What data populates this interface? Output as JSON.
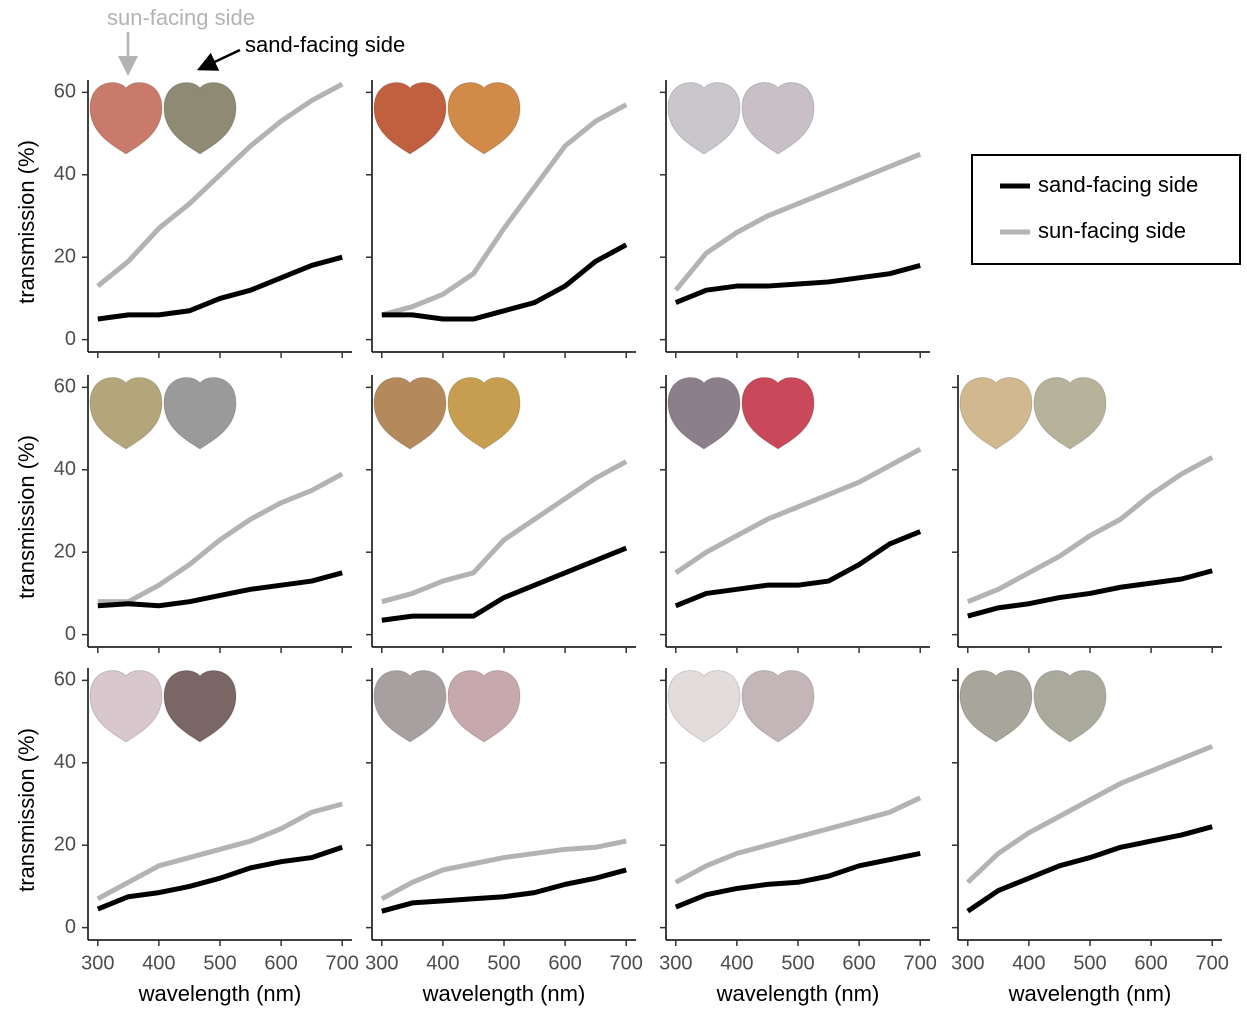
{
  "chart_data": [
    {
      "type": "line",
      "ylabel": "transmission (%)",
      "annotations": [
        "sun-facing side",
        "sand-facing side"
      ],
      "x": [
        300,
        350,
        400,
        450,
        500,
        550,
        600,
        650,
        700
      ],
      "xlim": [
        284,
        716
      ],
      "ylim": [
        -3,
        63
      ],
      "xticks": [
        300,
        400,
        500,
        600,
        700
      ],
      "yticks": [
        0,
        20,
        40,
        60
      ],
      "series": [
        {
          "name": "sand-facing side",
          "color": "#000000",
          "values": [
            5,
            6,
            6,
            7,
            10,
            12,
            15,
            18,
            20
          ]
        },
        {
          "name": "sun-facing side",
          "color": "#b3b3b3",
          "values": [
            13,
            19,
            27,
            33,
            40,
            47,
            53,
            58,
            62
          ]
        }
      ]
    },
    {
      "type": "line",
      "x": [
        300,
        350,
        400,
        450,
        500,
        550,
        600,
        650,
        700
      ],
      "xlim": [
        284,
        716
      ],
      "ylim": [
        -3,
        63
      ],
      "xticks": [
        300,
        400,
        500,
        600,
        700
      ],
      "yticks": [
        0,
        20,
        40,
        60
      ],
      "series": [
        {
          "name": "sand-facing side",
          "color": "#000000",
          "values": [
            6,
            6,
            5,
            5,
            7,
            9,
            13,
            19,
            23
          ]
        },
        {
          "name": "sun-facing side",
          "color": "#b3b3b3",
          "values": [
            6,
            8,
            11,
            16,
            27,
            37,
            47,
            53,
            57
          ]
        }
      ]
    },
    {
      "type": "line",
      "x": [
        300,
        350,
        400,
        450,
        500,
        550,
        600,
        650,
        700
      ],
      "xlim": [
        284,
        716
      ],
      "ylim": [
        -3,
        63
      ],
      "xticks": [
        300,
        400,
        500,
        600,
        700
      ],
      "yticks": [
        0,
        20,
        40,
        60
      ],
      "series": [
        {
          "name": "sand-facing side",
          "color": "#000000",
          "values": [
            9,
            12,
            13,
            13,
            13.5,
            14,
            15,
            16,
            18
          ]
        },
        {
          "name": "sun-facing side",
          "color": "#b3b3b3",
          "values": [
            12,
            21,
            26,
            30,
            33,
            36,
            39,
            42,
            45
          ]
        }
      ]
    },
    {
      "type": "line",
      "ylabel": "transmission (%)",
      "x": [
        300,
        350,
        400,
        450,
        500,
        550,
        600,
        650,
        700
      ],
      "xlim": [
        284,
        716
      ],
      "ylim": [
        -3,
        63
      ],
      "xticks": [
        300,
        400,
        500,
        600,
        700
      ],
      "yticks": [
        0,
        20,
        40,
        60
      ],
      "series": [
        {
          "name": "sand-facing side",
          "color": "#000000",
          "values": [
            7,
            7.5,
            7,
            8,
            9.5,
            11,
            12,
            13,
            15
          ]
        },
        {
          "name": "sun-facing side",
          "color": "#b3b3b3",
          "values": [
            8,
            8,
            12,
            17,
            23,
            28,
            32,
            35,
            39
          ]
        }
      ]
    },
    {
      "type": "line",
      "x": [
        300,
        350,
        400,
        450,
        500,
        550,
        600,
        650,
        700
      ],
      "xlim": [
        284,
        716
      ],
      "ylim": [
        -3,
        63
      ],
      "xticks": [
        300,
        400,
        500,
        600,
        700
      ],
      "yticks": [
        0,
        20,
        40,
        60
      ],
      "series": [
        {
          "name": "sand-facing side",
          "color": "#000000",
          "values": [
            3.5,
            4.5,
            4.5,
            4.5,
            9,
            12,
            15,
            18,
            21
          ]
        },
        {
          "name": "sun-facing side",
          "color": "#b3b3b3",
          "values": [
            8,
            10,
            13,
            15,
            23,
            28,
            33,
            38,
            42
          ]
        }
      ]
    },
    {
      "type": "line",
      "x": [
        300,
        350,
        400,
        450,
        500,
        550,
        600,
        650,
        700
      ],
      "xlim": [
        284,
        716
      ],
      "ylim": [
        -3,
        63
      ],
      "xticks": [
        300,
        400,
        500,
        600,
        700
      ],
      "yticks": [
        0,
        20,
        40,
        60
      ],
      "series": [
        {
          "name": "sand-facing side",
          "color": "#000000",
          "values": [
            7,
            10,
            11,
            12,
            12,
            13,
            17,
            22,
            25
          ]
        },
        {
          "name": "sun-facing side",
          "color": "#b3b3b3",
          "values": [
            15,
            20,
            24,
            28,
            31,
            34,
            37,
            41,
            45
          ]
        }
      ]
    },
    {
      "type": "line",
      "x": [
        300,
        350,
        400,
        450,
        500,
        550,
        600,
        650,
        700
      ],
      "xlim": [
        284,
        716
      ],
      "ylim": [
        -3,
        63
      ],
      "xticks": [
        300,
        400,
        500,
        600,
        700
      ],
      "yticks": [
        0,
        20,
        40,
        60
      ],
      "series": [
        {
          "name": "sand-facing side",
          "color": "#000000",
          "values": [
            4.5,
            6.5,
            7.5,
            9,
            10,
            11.5,
            12.5,
            13.5,
            15.5
          ]
        },
        {
          "name": "sun-facing side",
          "color": "#b3b3b3",
          "values": [
            8,
            11,
            15,
            19,
            24,
            28,
            34,
            39,
            43
          ]
        }
      ]
    },
    {
      "type": "line",
      "ylabel": "transmission (%)",
      "xlabel": "wavelength (nm)",
      "x": [
        300,
        350,
        400,
        450,
        500,
        550,
        600,
        650,
        700
      ],
      "xlim": [
        284,
        716
      ],
      "ylim": [
        -3,
        63
      ],
      "xticks": [
        300,
        400,
        500,
        600,
        700
      ],
      "yticks": [
        0,
        20,
        40,
        60
      ],
      "series": [
        {
          "name": "sand-facing side",
          "color": "#000000",
          "values": [
            4.5,
            7.5,
            8.5,
            10,
            12,
            14.5,
            16,
            17,
            19.5
          ]
        },
        {
          "name": "sun-facing side",
          "color": "#b3b3b3",
          "values": [
            7,
            11,
            15,
            17,
            19,
            21,
            24,
            28,
            30
          ]
        }
      ]
    },
    {
      "type": "line",
      "xlabel": "wavelength (nm)",
      "x": [
        300,
        350,
        400,
        450,
        500,
        550,
        600,
        650,
        700
      ],
      "xlim": [
        284,
        716
      ],
      "ylim": [
        -3,
        63
      ],
      "xticks": [
        300,
        400,
        500,
        600,
        700
      ],
      "yticks": [
        0,
        20,
        40,
        60
      ],
      "series": [
        {
          "name": "sand-facing side",
          "color": "#000000",
          "values": [
            4,
            6,
            6.5,
            7,
            7.5,
            8.5,
            10.5,
            12,
            14
          ]
        },
        {
          "name": "sun-facing side",
          "color": "#b3b3b3",
          "values": [
            7,
            11,
            14,
            15.5,
            17,
            18,
            19,
            19.5,
            21
          ]
        }
      ]
    },
    {
      "type": "line",
      "xlabel": "wavelength (nm)",
      "x": [
        300,
        350,
        400,
        450,
        500,
        550,
        600,
        650,
        700
      ],
      "xlim": [
        284,
        716
      ],
      "ylim": [
        -3,
        63
      ],
      "xticks": [
        300,
        400,
        500,
        600,
        700
      ],
      "yticks": [
        0,
        20,
        40,
        60
      ],
      "series": [
        {
          "name": "sand-facing side",
          "color": "#000000",
          "values": [
            5,
            8,
            9.5,
            10.5,
            11,
            12.5,
            15,
            16.5,
            18
          ]
        },
        {
          "name": "sun-facing side",
          "color": "#b3b3b3",
          "values": [
            11,
            15,
            18,
            20,
            22,
            24,
            26,
            28,
            31.5
          ]
        }
      ]
    },
    {
      "type": "line",
      "xlabel": "wavelength (nm)",
      "x": [
        300,
        350,
        400,
        450,
        500,
        550,
        600,
        650,
        700
      ],
      "xlim": [
        284,
        716
      ],
      "ylim": [
        -3,
        63
      ],
      "xticks": [
        300,
        400,
        500,
        600,
        700
      ],
      "yticks": [
        0,
        20,
        40,
        60
      ],
      "series": [
        {
          "name": "sand-facing side",
          "color": "#000000",
          "values": [
            4,
            9,
            12,
            15,
            17,
            19.5,
            21,
            22.5,
            24.5
          ]
        },
        {
          "name": "sun-facing side",
          "color": "#b3b3b3",
          "values": [
            11,
            18,
            23,
            27,
            31,
            35,
            38,
            41,
            44
          ]
        }
      ]
    }
  ]
}
